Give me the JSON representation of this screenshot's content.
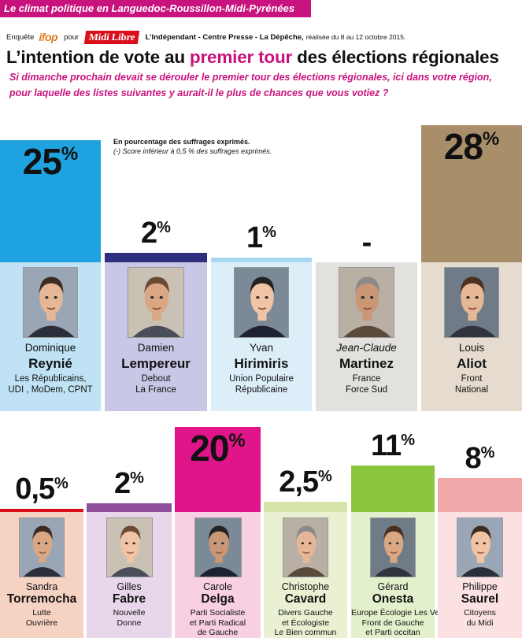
{
  "banner": {
    "text": "Le climat politique en Languedoc-Roussillon-Midi-Pyrénées"
  },
  "survey": {
    "prefix": "Enquête",
    "institute": "ifop",
    "for": "pour",
    "newspaper": "Midi Libre",
    "partners": "L’Indépendant - Centre Presse - La Dépêche,",
    "date": "réalisée du 8 au 12 octobre 2015."
  },
  "title": {
    "pre": "L’intention de vote au ",
    "highlight": "premier tour",
    "post": " des élections régionales"
  },
  "question": {
    "line1": "Si dimanche prochain devait se dérouler le premier tour des élections régionales, ici dans votre région,",
    "line2": "pour laquelle des listes suivantes y aurait-il le plus de chances que vous votiez ?"
  },
  "note": {
    "line1": "En pourcentage des suffrages exprimés.",
    "line2": "(-) Score inférieur à 0,5 % des suffrages exprimés."
  },
  "colors": {
    "brand_magenta": "#c8127d",
    "midi_libre_red": "#d8101c"
  },
  "chart_data": {
    "type": "bar",
    "title": "L’intention de vote au premier tour des élections régionales",
    "unit": "%",
    "ylim": [
      0,
      30
    ],
    "categories": [
      "Dominique Reynié",
      "Damien Lempereur",
      "Yvan Hirimiris",
      "Jean-Claude Martinez",
      "Louis Aliot",
      "Sandra Torremocha",
      "Gilles Fabre",
      "Carole Delga",
      "Christophe Cavard",
      "Gérard Onesta",
      "Philippe Saurel"
    ],
    "values": [
      25,
      2,
      1,
      null,
      28,
      0.5,
      2,
      20,
      2.5,
      11,
      8
    ],
    "value_labels": [
      "25",
      "2",
      "1",
      "-",
      "28",
      "0,5",
      "2",
      "20",
      "2,5",
      "11",
      "8"
    ],
    "candidates": [
      {
        "first": "Dominique",
        "last": "Reynié",
        "party": [
          "Les Républicains,",
          "UDI , MoDem, CPNT"
        ],
        "bar_color": "#1ea2e0",
        "panel_color": "#bfe2f4",
        "row": 1
      },
      {
        "first": "Damien",
        "last": "Lempereur",
        "party": [
          "Debout",
          "La France"
        ],
        "bar_color": "#2e2f7f",
        "panel_color": "#c8c7e6",
        "row": 1
      },
      {
        "first": "Yvan",
        "last": "Hirimiris",
        "party": [
          "Union Populaire",
          "Républicaine"
        ],
        "bar_color": "#a8d8ef",
        "panel_color": "#dceff8",
        "row": 1
      },
      {
        "first": "Jean-Claude",
        "last": "Martinez",
        "party": [
          "France",
          "Force Sud"
        ],
        "bar_color": "#e2e1dd",
        "panel_color": "#e2e1dd",
        "row": 1,
        "italic_first": true
      },
      {
        "first": "Louis",
        "last": "Aliot",
        "party": [
          "Front",
          "National"
        ],
        "bar_color": "#a88e69",
        "panel_color": "#e5dccf",
        "row": 1
      },
      {
        "first": "Sandra",
        "last": "Torremocha",
        "party": [
          "Lutte",
          "Ouvrière"
        ],
        "bar_color": "#d8101c",
        "panel_color": "#f6d2c3",
        "row": 2
      },
      {
        "first": "Gilles",
        "last": "Fabre",
        "party": [
          "Nouvelle",
          "Donne"
        ],
        "bar_color": "#8e4e9c",
        "panel_color": "#e8d7ea",
        "row": 2
      },
      {
        "first": "Carole",
        "last": "Delga",
        "party": [
          "Parti Socialiste",
          "et Parti Radical",
          "de Gauche"
        ],
        "bar_color": "#e0158a",
        "panel_color": "#f8cfe3",
        "row": 2
      },
      {
        "first": "Christophe",
        "last": "Cavard",
        "party": [
          "Divers Gauche",
          "et Écologiste",
          "Le Bien commun"
        ],
        "bar_color": "#d6e5a8",
        "panel_color": "#e9f1d2",
        "row": 2
      },
      {
        "first": "Gérard",
        "last": "Onesta",
        "party": [
          "Europe Écologie Les Verts,",
          "Front de Gauche",
          "et Parti occitan"
        ],
        "bar_color": "#8cc63e",
        "panel_color": "#e2f0cc",
        "row": 2
      },
      {
        "first": "Philippe",
        "last": "Saurel",
        "party": [
          "Citoyens",
          "du Midi"
        ],
        "bar_color": "#f1a8a8",
        "panel_color": "#fbe1e1",
        "row": 2
      }
    ]
  }
}
